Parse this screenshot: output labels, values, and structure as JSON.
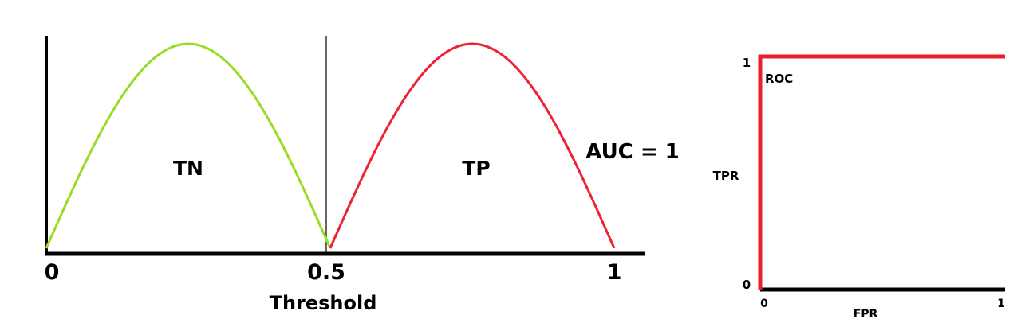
{
  "colors": {
    "negative_curve": "#99dd22",
    "positive_curve": "#ee2233",
    "roc_curve": "#e8202a",
    "axis": "#000000"
  },
  "distribution_plot": {
    "x_ticks": [
      "0",
      "0.5",
      "1"
    ],
    "x_title": "Threshold",
    "negative_label": "TN",
    "positive_label": "TP"
  },
  "auc_label": "AUC = 1",
  "roc_plot": {
    "title": "ROC",
    "y_title": "TPR",
    "x_title": "FPR",
    "y_ticks": [
      "1",
      "0"
    ],
    "x_ticks": [
      "0",
      "1"
    ]
  },
  "chart_data": {
    "type": "line",
    "series": [
      {
        "name": "TN",
        "x": [
          0,
          0.0625,
          0.125,
          0.1875,
          0.25,
          0.3125,
          0.375,
          0.4375,
          0.5
        ]
      },
      {
        "name": "TP",
        "x": [
          0.5,
          0.5625,
          0.625,
          0.6875,
          0.75,
          0.8125,
          0.875,
          0.9375,
          1
        ]
      }
    ],
    "threshold": 0.5,
    "roc": {
      "fpr": [
        0,
        0,
        1
      ],
      "tpr": [
        0,
        1,
        1
      ]
    },
    "auc": 1
  }
}
